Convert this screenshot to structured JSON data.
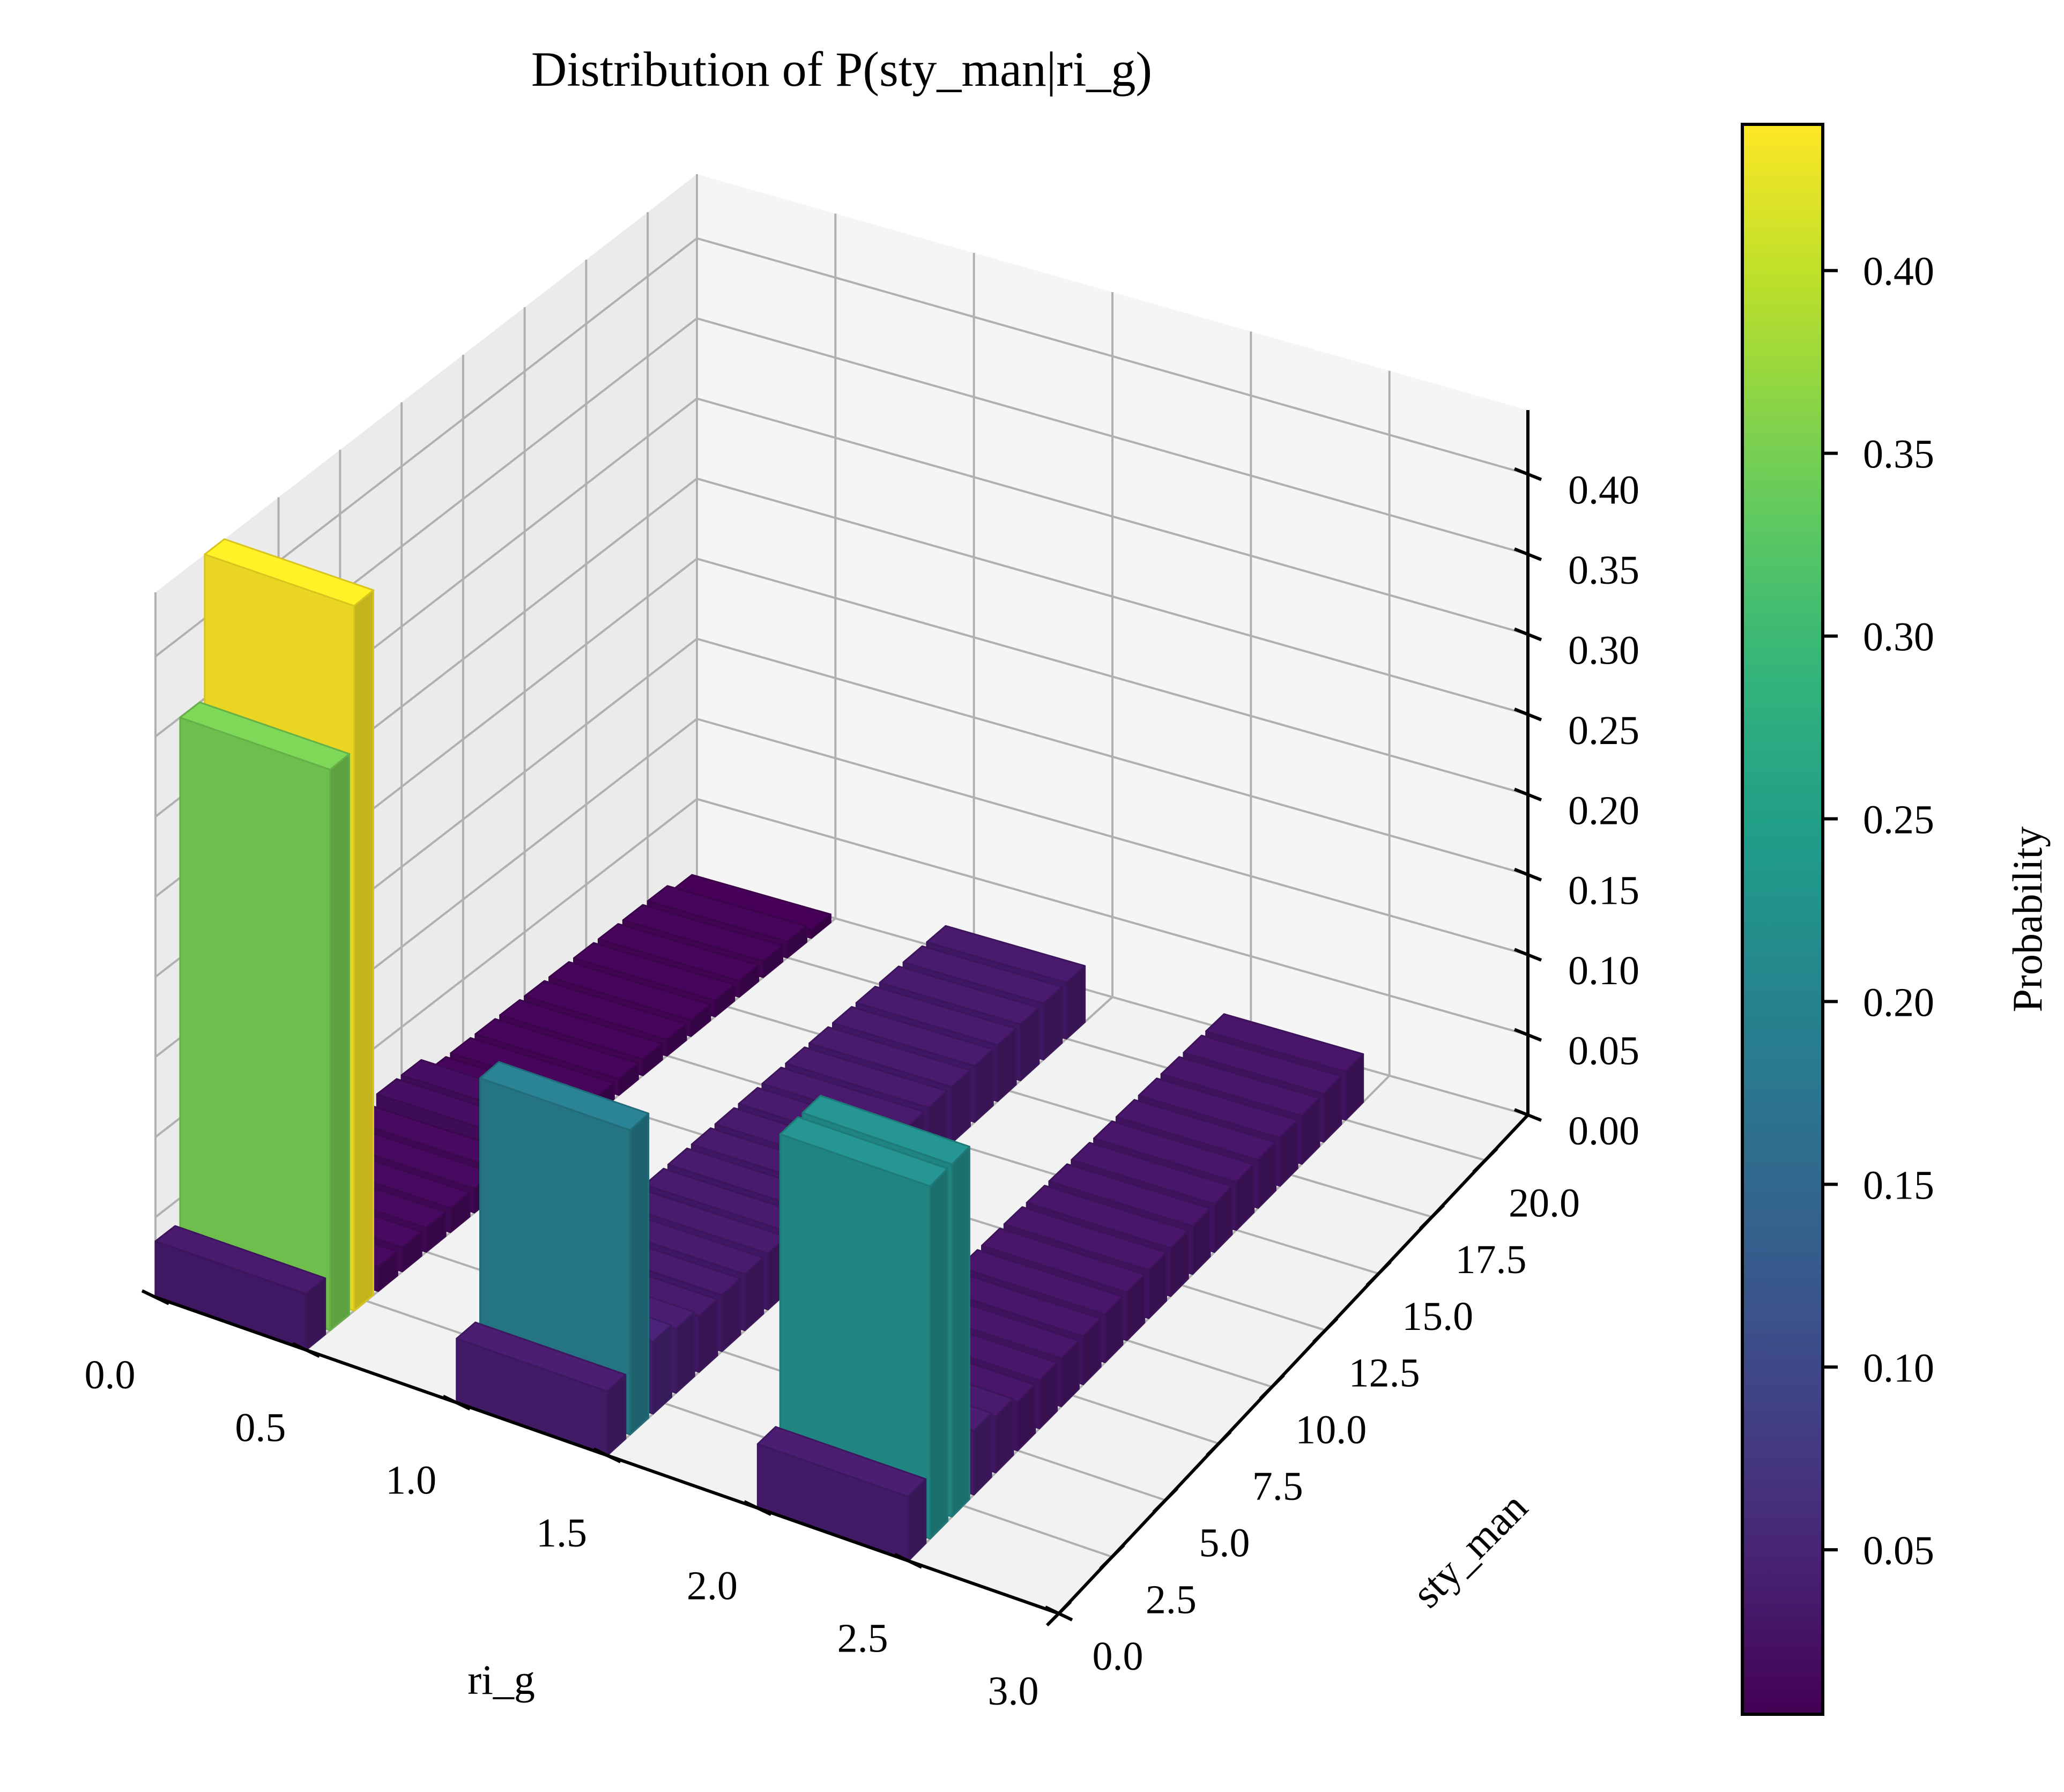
{
  "chart_data": {
    "type": "bar3d",
    "title": "Distribution of P(sty_man|ri_g)",
    "xlabel": "ri_g",
    "ylabel": "sty_man",
    "zlabel": "",
    "colorbar_label": "Probability",
    "colormap": "viridis",
    "colorbar_range": [
      0.005,
      0.44
    ],
    "colorbar_ticks": [
      "0.05",
      "0.10",
      "0.15",
      "0.20",
      "0.25",
      "0.30",
      "0.35",
      "0.40"
    ],
    "xlim": [
      0.0,
      3.0
    ],
    "ylim": [
      0.0,
      22.0
    ],
    "zlim": [
      0.0,
      0.44
    ],
    "x_ticks": [
      "0.0",
      "0.5",
      "1.0",
      "1.5",
      "2.0",
      "2.5",
      "3.0"
    ],
    "y_ticks": [
      "0.0",
      "2.5",
      "5.0",
      "7.5",
      "10.0",
      "12.5",
      "15.0",
      "17.5",
      "20.0"
    ],
    "z_ticks": [
      "0.00",
      "0.05",
      "0.10",
      "0.15",
      "0.20",
      "0.25",
      "0.30",
      "0.35",
      "0.40"
    ],
    "grid": true,
    "pane_color": "#f2f2f2",
    "grid_color": "#b0b0b0",
    "series": [
      {
        "ri_g": 0,
        "sty_man": [
          0,
          1,
          2,
          3,
          4,
          5,
          6,
          7,
          8,
          9,
          10,
          11,
          12,
          13,
          14,
          15,
          16,
          17,
          18,
          19,
          20,
          21
        ],
        "probability": [
          0.035,
          0.35,
          0.44,
          0.015,
          0.015,
          0.015,
          0.015,
          0.015,
          0.015,
          0.02,
          0.02,
          0.01,
          0.01,
          0.01,
          0.01,
          0.01,
          0.01,
          0.01,
          0.01,
          0.01,
          0.01,
          0.005
        ]
      },
      {
        "ri_g": 1,
        "sty_man": [
          0,
          1,
          2,
          3,
          4,
          5,
          6,
          7,
          8,
          9,
          10,
          11,
          12,
          13,
          14,
          15,
          16,
          17,
          18,
          19,
          20
        ],
        "probability": [
          0.04,
          0.19,
          0.045,
          0.04,
          0.035,
          0.035,
          0.035,
          0.035,
          0.035,
          0.035,
          0.035,
          0.035,
          0.035,
          0.035,
          0.035,
          0.035,
          0.035,
          0.035,
          0.035,
          0.035,
          0.035
        ]
      },
      {
        "ri_g": 2,
        "sty_man": [
          0,
          1,
          2,
          3,
          4,
          5,
          6,
          7,
          8,
          9,
          10,
          11,
          12,
          13,
          14,
          15,
          16,
          17,
          18,
          19,
          20
        ],
        "probability": [
          0.04,
          0.22,
          0.22,
          0.04,
          0.035,
          0.03,
          0.03,
          0.03,
          0.03,
          0.03,
          0.03,
          0.03,
          0.03,
          0.03,
          0.03,
          0.03,
          0.03,
          0.03,
          0.03,
          0.03,
          0.03
        ]
      }
    ]
  }
}
